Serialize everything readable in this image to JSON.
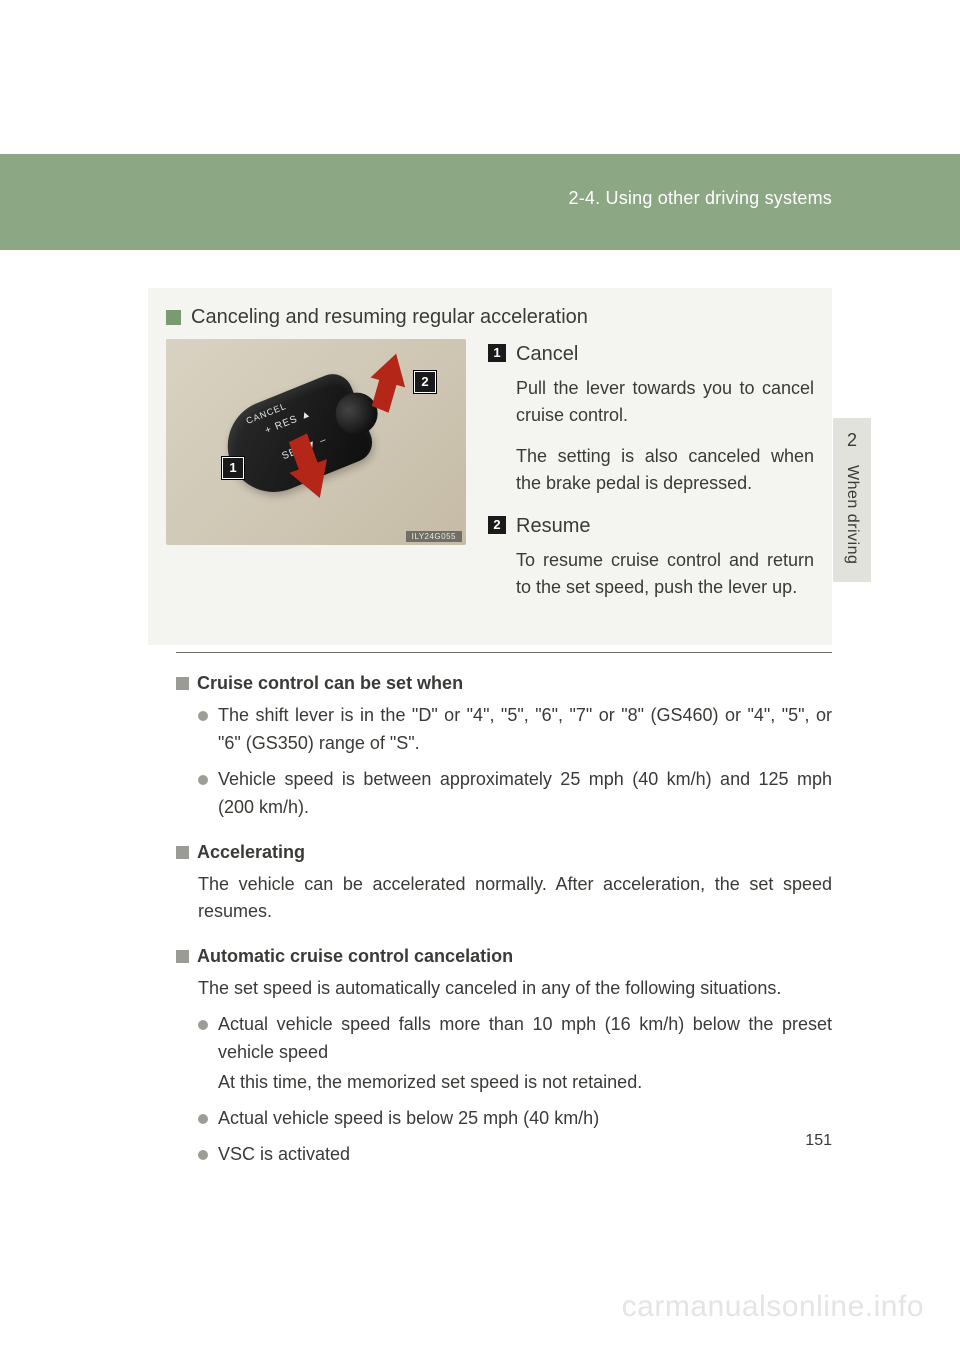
{
  "colors": {
    "header_bg": "#8ca783",
    "header_fg": "#ffffff",
    "box_bg": "#f4f4f0",
    "tab_bg": "#e2e2dc",
    "text": "#3a3a37",
    "green_square": "#7b9a72",
    "gray_square": "#9b9b95",
    "bullet": "#9d9d98",
    "arrow_red": "#b42618",
    "watermark": "#e4e4e4"
  },
  "header": {
    "breadcrumb": "2-4. Using other driving systems"
  },
  "side_tab": {
    "chapter": "2",
    "label": "When driving"
  },
  "section": {
    "title": "Canceling and resuming regular acceleration",
    "image": {
      "callouts": {
        "c1": "1",
        "c2": "2"
      },
      "stalk_labels": {
        "cancel": "CANCEL",
        "res": "+ RES ▲",
        "set": "SET ▼ –"
      },
      "code": "ILY24G055"
    },
    "steps": [
      {
        "num": "1",
        "label": "Cancel",
        "desc_a": "Pull the lever towards you to cancel cruise control.",
        "desc_b": "The setting is also canceled when the brake pedal is depressed."
      },
      {
        "num": "2",
        "label": "Resume",
        "desc_a": "To resume cruise control and return to the set speed, push the lever up."
      }
    ]
  },
  "subs": [
    {
      "title": "Cruise control can be set when",
      "bullets": [
        {
          "text": "The shift lever is in the \"D\" or \"4\", \"5\", \"6\", \"7\" or \"8\" (GS460) or \"4\", \"5\", or \"6\" (GS350) range of \"S\"."
        },
        {
          "text": "Vehicle speed is between approximately 25 mph (40 km/h) and 125 mph (200 km/h)."
        }
      ]
    },
    {
      "title": "Accelerating",
      "para": "The vehicle can be accelerated normally. After acceleration, the set speed resumes."
    },
    {
      "title": "Automatic cruise control cancelation",
      "para": "The set speed is automatically canceled in any of the following situations.",
      "bullets": [
        {
          "text": "Actual vehicle speed falls more than 10 mph (16 km/h) below the preset vehicle speed",
          "sub": "At this time, the memorized set speed is not retained."
        },
        {
          "text": "Actual vehicle speed is below 25 mph (40 km/h)"
        },
        {
          "text": "VSC is activated"
        }
      ]
    }
  ],
  "page_number": "151",
  "watermark": "carmanualsonline.info"
}
